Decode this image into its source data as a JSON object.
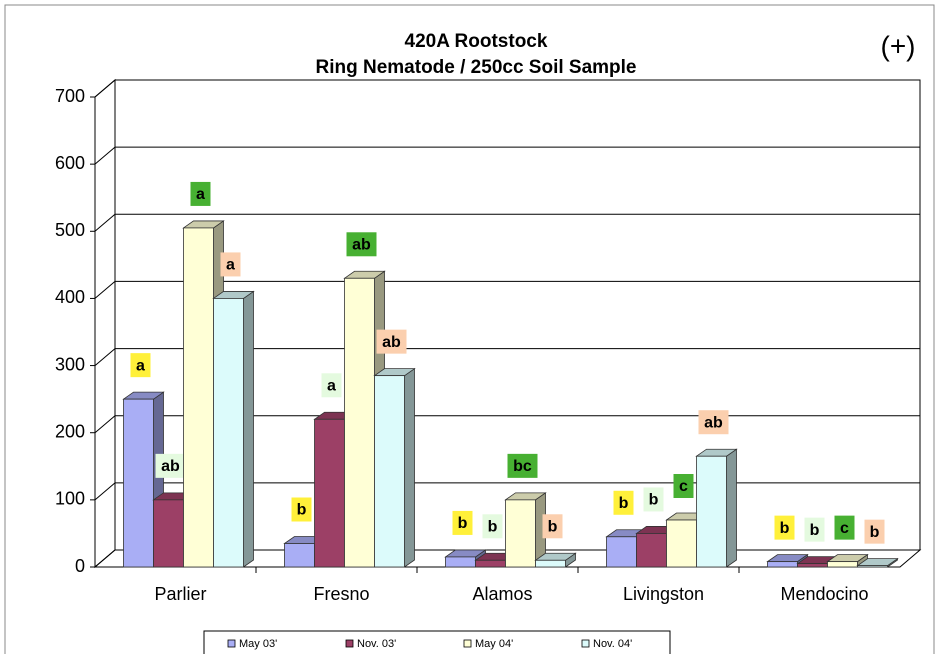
{
  "chart_data": {
    "type": "bar3d",
    "title": "420A Rootstock",
    "subtitle": "Ring Nematode / 250cc Soil Sample",
    "annotation": "(+)",
    "categories": [
      "Parlier",
      "Fresno",
      "Alamos",
      "Livingston",
      "Mendocino"
    ],
    "series": [
      {
        "name": "May 03'",
        "color": "#a9aef5",
        "label_color": "#fff03a",
        "values": [
          250,
          35,
          15,
          45,
          8
        ],
        "letters": [
          "a",
          "b",
          "b",
          "b",
          "b"
        ]
      },
      {
        "name": "Nov. 03'",
        "color": "#9c4066",
        "label_color": "#e4fadf",
        "values": [
          100,
          220,
          10,
          50,
          5
        ],
        "letters": [
          "ab",
          "a",
          "b",
          "b",
          "b"
        ]
      },
      {
        "name": "May 04'",
        "color": "#ffffd6",
        "label_color": "#47b032",
        "values": [
          505,
          430,
          100,
          70,
          8
        ],
        "letters": [
          "a",
          "ab",
          "bc",
          "c",
          "c"
        ]
      },
      {
        "name": "Nov. 04'",
        "color": "#dcfbfb",
        "label_color": "#fbcfae",
        "values": [
          400,
          285,
          10,
          165,
          2
        ],
        "letters": [
          "a",
          "ab",
          "b",
          "ab",
          "b"
        ]
      }
    ],
    "ylim": [
      0,
      700
    ],
    "yticks": [
      0,
      100,
      200,
      300,
      400,
      500,
      600,
      700
    ],
    "grid": true
  }
}
